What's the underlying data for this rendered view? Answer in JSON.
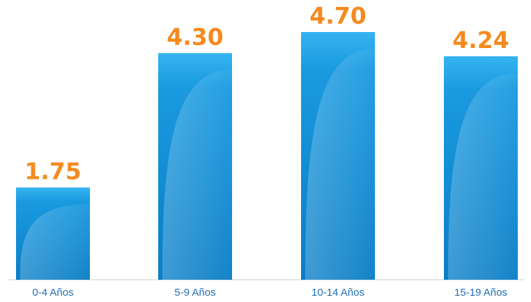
{
  "chart_data": {
    "type": "bar",
    "categories": [
      "0-4 Años",
      "5-9 Años",
      "10-14 Años",
      "15-19 Años"
    ],
    "values": [
      1.75,
      4.3,
      4.7,
      4.24
    ],
    "value_labels": [
      "1.75",
      "4.30",
      "4.70",
      "4.24"
    ],
    "title": "",
    "xlabel": "",
    "ylabel": "",
    "ylim": [
      0,
      4.7
    ],
    "grid": false,
    "legend": "none"
  },
  "colors": {
    "bar_top": "#35b4f0",
    "bar_bottom": "#0a80c8",
    "value_label": "#f58a1f",
    "axis_label": "#1f6fb4",
    "axis_line": "#c9ccd0"
  }
}
